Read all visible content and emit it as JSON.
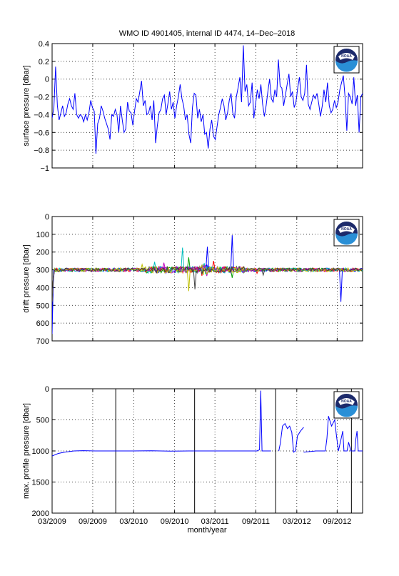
{
  "title": "WMO ID 4901405, internal ID 4474, 14–Dec–2018",
  "xlabel": "month/year",
  "xticks": [
    "03/2009",
    "09/2009",
    "03/2010",
    "09/2010",
    "03/2011",
    "09/2011",
    "03/2012",
    "09/2012"
  ],
  "logo": {
    "name": "noaa-logo",
    "text": "NOAA",
    "colors": {
      "navy": "#1c2a6b",
      "blue": "#2a8fd6",
      "white": "#ffffff"
    }
  },
  "colors": {
    "series": "#0000ff",
    "marker_lines": "#000000",
    "grid": "#000000"
  },
  "chart_data": [
    {
      "type": "line",
      "ylabel": "surface pressure [dbar]",
      "ylim": [
        -1,
        0.4
      ],
      "yticks": [
        "0.4",
        "0.2",
        "0",
        "−0.2",
        "−0.4",
        "−0.6",
        "−0.8",
        "−1"
      ],
      "ytick_values": [
        0.4,
        0.2,
        0,
        -0.2,
        -0.4,
        -0.6,
        -0.8,
        -1
      ],
      "y_reversed": false,
      "grid": true,
      "series": [
        {
          "x_start": "2009-03",
          "step_days": 10,
          "values": [
            -0.44,
            -0.32,
            0.14,
            -0.3,
            -0.46,
            -0.38,
            -0.3,
            -0.42,
            -0.38,
            -0.28,
            -0.22,
            -0.3,
            -0.34,
            -0.16,
            -0.4,
            -0.44,
            -0.4,
            -0.42,
            -0.48,
            -0.4,
            -0.46,
            -0.38,
            -0.24,
            -0.32,
            -0.36,
            -0.84,
            -0.5,
            -0.44,
            -0.3,
            -0.36,
            -0.44,
            -0.5,
            -0.56,
            -0.68,
            -0.4,
            -0.42,
            -0.34,
            -0.4,
            -0.6,
            -0.3,
            -0.46,
            -0.6,
            -0.56,
            -0.26,
            -0.36,
            -0.38,
            -0.52,
            -0.36,
            -0.22,
            -0.26,
            -0.14,
            -0.02,
            -0.3,
            -0.24,
            -0.4,
            -0.38,
            -0.3,
            -0.46,
            -0.24,
            -0.72,
            -0.52,
            -0.38,
            -0.34,
            -0.22,
            -0.18,
            -0.4,
            -0.28,
            -0.14,
            -0.34,
            -0.26,
            -0.44,
            -0.3,
            -0.2,
            -0.06,
            -0.22,
            -0.3,
            -0.46,
            -0.4,
            -0.62,
            -0.72,
            -0.32,
            -0.16,
            -0.18,
            -0.44,
            -0.34,
            -0.48,
            -0.4,
            -0.62,
            -0.6,
            -0.78,
            -0.56,
            -0.46,
            -0.64,
            -0.68,
            -0.54,
            -0.4,
            -0.32,
            -0.22,
            -0.3,
            -0.46,
            -0.38,
            -0.24,
            -0.16,
            -0.38,
            -0.44,
            -0.2,
            -0.1,
            0.02,
            -0.26,
            0.38,
            -0.14,
            -0.06,
            -0.3,
            -0.26,
            -0.04,
            -0.44,
            -0.28,
            -0.12,
            -0.22,
            -0.06,
            -0.28,
            -0.42,
            -0.3,
            -0.14,
            0.0,
            -0.22,
            -0.26,
            -0.12,
            -0.2,
            0.22,
            -0.08,
            -0.1,
            -0.3,
            -0.18,
            -0.06,
            0.06,
            -0.2,
            -0.14,
            -0.32,
            -0.26,
            -0.1,
            0.02,
            -0.2,
            -0.24,
            -0.16,
            0.16,
            -0.28,
            -0.34,
            -0.26,
            -0.18,
            -0.22,
            -0.16,
            -0.28,
            -0.42,
            -0.3,
            -0.12,
            -0.26,
            -0.04,
            -0.3,
            -0.38,
            -0.34,
            -0.24,
            -0.32,
            -0.26,
            -0.12,
            -0.04,
            0.04,
            -0.2,
            -0.58,
            -0.16,
            -0.2,
            -0.28,
            0.02,
            -0.3,
            -0.18,
            -0.6,
            -0.2,
            -0.16
          ]
        }
      ]
    },
    {
      "type": "line",
      "ylabel": "drift pressure [dbar]",
      "ylim": [
        0,
        700
      ],
      "yticks": [
        "0",
        "100",
        "200",
        "300",
        "400",
        "500",
        "600",
        "700"
      ],
      "ytick_values": [
        0,
        100,
        200,
        300,
        400,
        500,
        600,
        700
      ],
      "y_reversed": true,
      "grid": true,
      "series": [
        {
          "name": "",
          "color": "#0000ff",
          "spikes": [
            [
              0.58,
              105
            ],
            [
              0.5,
              170
            ],
            [
              0.93,
              480
            ],
            [
              0.0,
              660
            ]
          ]
        },
        {
          "name": "",
          "color": "#00a000",
          "spikes": [
            [
              0.44,
              230
            ],
            [
              0.58,
              345
            ]
          ]
        },
        {
          "name": "",
          "color": "#ff0000",
          "spikes": [
            [
              0.52,
              250
            ],
            [
              0.66,
              320
            ]
          ]
        },
        {
          "name": "",
          "color": "#00bfbf",
          "spikes": [
            [
              0.33,
              255
            ],
            [
              0.42,
              175
            ]
          ]
        },
        {
          "name": "",
          "color": "#bf00bf",
          "spikes": [
            [
              0.36,
              260
            ],
            [
              0.47,
              290
            ]
          ]
        },
        {
          "name": "",
          "color": "#bfbf00",
          "spikes": [
            [
              0.29,
              270
            ],
            [
              0.44,
              420
            ]
          ]
        },
        {
          "name": "",
          "color": "#404040",
          "spikes": [
            [
              0.46,
              410
            ],
            [
              0.68,
              330
            ]
          ]
        }
      ],
      "level": 300
    },
    {
      "type": "line",
      "ylabel": "max. profile pressure [dbar]",
      "ylim": [
        0,
        2000
      ],
      "yticks": [
        "0",
        "500",
        "1000",
        "1500",
        "2000"
      ],
      "ytick_values": [
        0,
        500,
        1000,
        1500,
        2000
      ],
      "y_reversed": true,
      "grid": true,
      "vertical_markers_frac": [
        0.205,
        0.459,
        0.72,
        0.964
      ],
      "series": [
        {
          "name": "",
          "segments": [
            [
              [
                0.0,
                1080
              ],
              [
                0.02,
                1040
              ],
              [
                0.04,
                1020
              ],
              [
                0.07,
                1000
              ],
              [
                0.1,
                995
              ],
              [
                0.14,
                1000
              ],
              [
                0.2,
                1000
              ],
              [
                0.26,
                1000
              ],
              [
                0.32,
                998
              ],
              [
                0.38,
                1002
              ],
              [
                0.44,
                1000
              ],
              [
                0.5,
                1000
              ],
              [
                0.56,
                1000
              ],
              [
                0.62,
                1000
              ],
              [
                0.66,
                1000
              ],
              [
                0.668,
                980
              ],
              [
                0.672,
                30
              ],
              [
                0.676,
                1000
              ],
              [
                0.69,
                1000
              ],
              [
                0.705,
                1000
              ]
            ],
            [
              [
                0.73,
                1000
              ],
              [
                0.735,
                880
              ],
              [
                0.742,
                600
              ],
              [
                0.75,
                560
              ],
              [
                0.758,
                640
              ],
              [
                0.765,
                600
              ],
              [
                0.772,
                700
              ],
              [
                0.778,
                1020
              ],
              [
                0.784,
                1000
              ],
              [
                0.79,
                760
              ],
              [
                0.8,
                680
              ],
              [
                0.81,
                620
              ]
            ],
            [
              [
                0.81,
                1020
              ],
              [
                0.83,
                1010
              ],
              [
                0.85,
                1000
              ],
              [
                0.88,
                1000
              ],
              [
                0.885,
                800
              ],
              [
                0.89,
                440
              ],
              [
                0.9,
                600
              ],
              [
                0.91,
                500
              ],
              [
                0.915,
                720
              ],
              [
                0.922,
                1000
              ],
              [
                0.93,
                820
              ],
              [
                0.936,
                680
              ],
              [
                0.94,
                1000
              ],
              [
                0.95,
                1000
              ],
              [
                0.955,
                860
              ],
              [
                0.962,
                1000
              ],
              [
                0.975,
                1000
              ],
              [
                0.978,
                820
              ],
              [
                0.982,
                680
              ],
              [
                0.986,
                1000
              ],
              [
                1.0,
                1000
              ]
            ]
          ]
        }
      ]
    }
  ]
}
